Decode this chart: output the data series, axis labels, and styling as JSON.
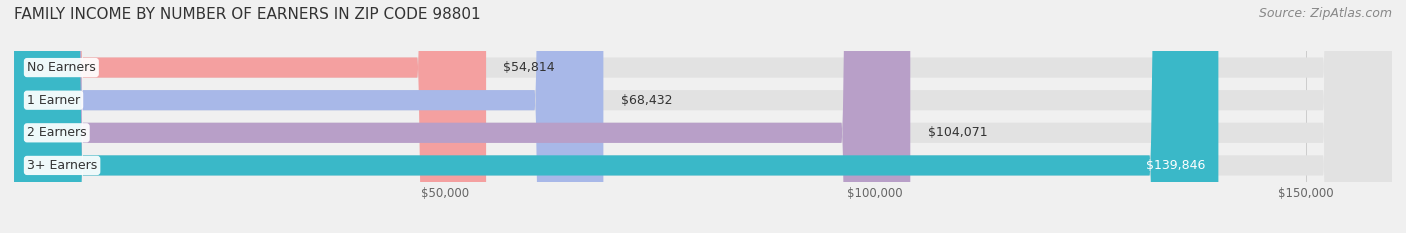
{
  "title": "FAMILY INCOME BY NUMBER OF EARNERS IN ZIP CODE 98801",
  "source": "Source: ZipAtlas.com",
  "categories": [
    "No Earners",
    "1 Earner",
    "2 Earners",
    "3+ Earners"
  ],
  "values": [
    54814,
    68432,
    104071,
    139846
  ],
  "bar_colors": [
    "#f4a0a0",
    "#a8b8e8",
    "#b89fc8",
    "#3ab8c8"
  ],
  "label_colors": [
    "#555555",
    "#555555",
    "#555555",
    "#ffffff"
  ],
  "value_labels": [
    "$54,814",
    "$68,432",
    "$104,071",
    "$139,846"
  ],
  "xlim": [
    0,
    160000
  ],
  "xticks": [
    50000,
    100000,
    150000
  ],
  "xtick_labels": [
    "$50,000",
    "$100,000",
    "$150,000"
  ],
  "background_color": "#f0f0f0",
  "bar_background_color": "#e2e2e2",
  "bar_height": 0.62,
  "title_fontsize": 11,
  "source_fontsize": 9,
  "label_fontsize": 9,
  "value_fontsize": 9
}
